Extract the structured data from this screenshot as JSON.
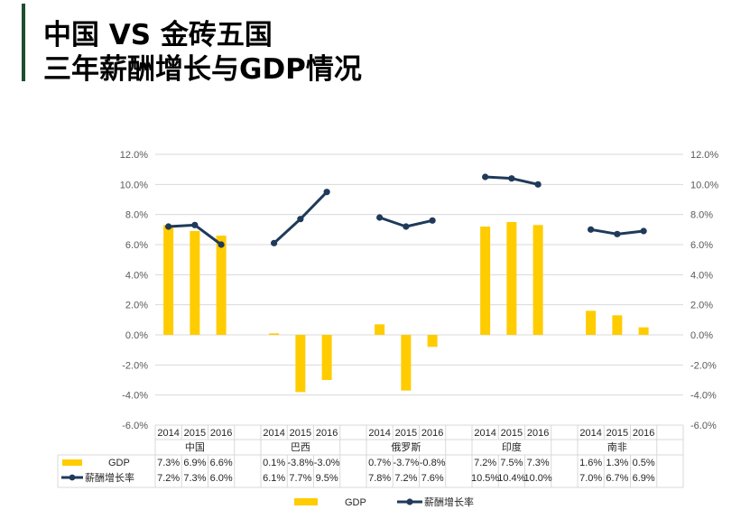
{
  "title": {
    "line1": "中国 VS 金砖五国",
    "line2": "三年薪酬增长与GDP情况"
  },
  "colors": {
    "accent": "#1f4d2e",
    "gdp": "#FFCC00",
    "salary": "#1F3A5A",
    "grid": "#D9D9D9",
    "text": "#595959"
  },
  "chart_data": {
    "type": "bar+line",
    "categories": [
      "中国",
      "巴西",
      "俄罗斯",
      "印度",
      "南非"
    ],
    "years": [
      "2014",
      "2015",
      "2016"
    ],
    "ylim": [
      -6,
      12
    ],
    "y_ticks": [
      "-6.0%",
      "-4.0%",
      "-2.0%",
      "0.0%",
      "2.0%",
      "4.0%",
      "6.0%",
      "8.0%",
      "10.0%",
      "12.0%"
    ],
    "series": [
      {
        "name": "GDP",
        "type": "bar",
        "axis": "left",
        "values": [
          [
            7.3,
            6.9,
            6.6
          ],
          [
            0.1,
            -3.8,
            -3.0
          ],
          [
            0.7,
            -3.7,
            -0.8
          ],
          [
            7.2,
            7.5,
            7.3
          ],
          [
            1.6,
            1.3,
            0.5
          ]
        ],
        "labels": [
          [
            "7.3%",
            "6.9%",
            "6.6%"
          ],
          [
            "0.1%",
            "-3.8%",
            "-3.0%"
          ],
          [
            "0.7%",
            "-3.7%",
            "-0.8%"
          ],
          [
            "7.2%",
            "7.5%",
            "7.3%"
          ],
          [
            "1.6%",
            "1.3%",
            "0.5%"
          ]
        ]
      },
      {
        "name": "薪酬增长率",
        "type": "line",
        "axis": "right",
        "values": [
          [
            7.2,
            7.3,
            6.0
          ],
          [
            6.1,
            7.7,
            9.5
          ],
          [
            7.8,
            7.2,
            7.6
          ],
          [
            10.5,
            10.4,
            10.0
          ],
          [
            7.0,
            6.7,
            6.9
          ]
        ],
        "labels": [
          [
            "7.2%",
            "7.3%",
            "6.0%"
          ],
          [
            "6.1%",
            "7.7%",
            "9.5%"
          ],
          [
            "7.8%",
            "7.2%",
            "7.6%"
          ],
          [
            "10.5%",
            "10.4%",
            "10.0%"
          ],
          [
            "7.0%",
            "6.7%",
            "6.9%"
          ]
        ]
      }
    ],
    "legend": {
      "position": "bottom",
      "entries": [
        "GDP",
        "薪酬增长率"
      ]
    }
  }
}
